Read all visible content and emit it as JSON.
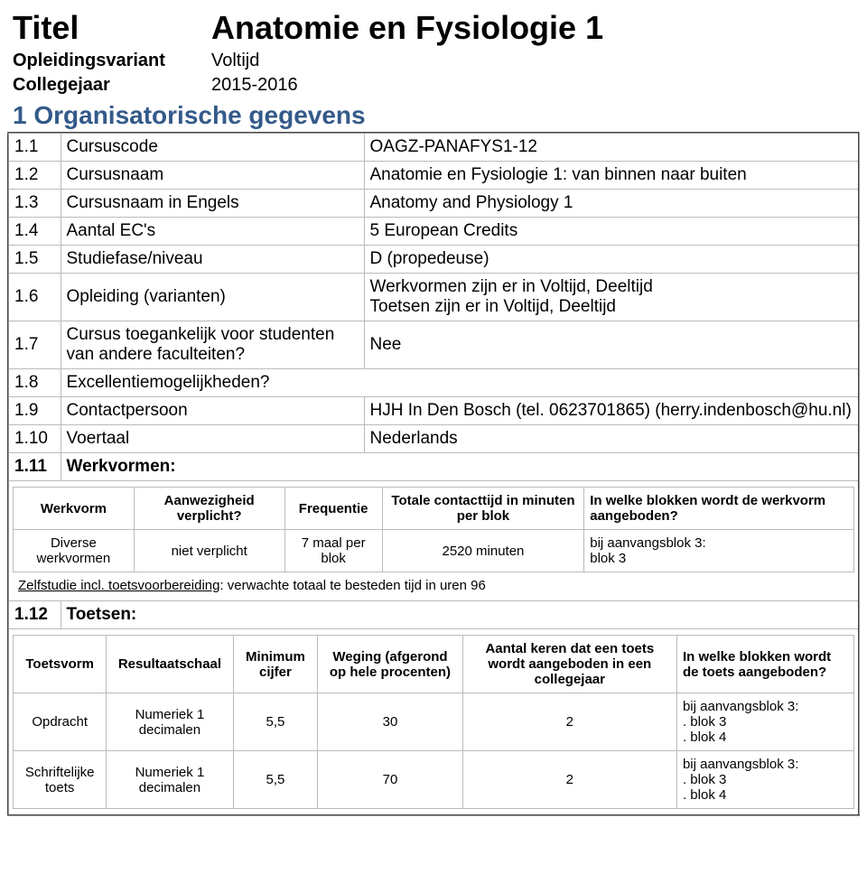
{
  "header": {
    "title_label": "Titel",
    "title_value": "Anatomie en Fysiologie 1",
    "variant_label": "Opleidingsvariant",
    "variant_value": "Voltijd",
    "year_label": "Collegejaar",
    "year_value": "2015-2016"
  },
  "section1": {
    "heading": "1 Organisatorische gegevens",
    "rows": [
      {
        "num": "1.1",
        "label": "Cursuscode",
        "value": "OAGZ-PANAFYS1-12"
      },
      {
        "num": "1.2",
        "label": "Cursusnaam",
        "value": "Anatomie en Fysiologie 1: van binnen naar buiten"
      },
      {
        "num": "1.3",
        "label": "Cursusnaam in Engels",
        "value": "Anatomy and Physiology 1"
      },
      {
        "num": "1.4",
        "label": "Aantal EC's",
        "value": "5 European Credits"
      },
      {
        "num": "1.5",
        "label": "Studiefase/niveau",
        "value": "D (propedeuse)"
      },
      {
        "num": "1.6",
        "label": "Opleiding (varianten)",
        "value": "Werkvormen zijn er in Voltijd, Deeltijd\nToetsen zijn er in Voltijd, Deeltijd"
      },
      {
        "num": "1.7",
        "label": "Cursus toegankelijk voor studenten van andere faculteiten?",
        "value": "Nee"
      },
      {
        "num": "1.8",
        "label": "Excellentiemogelijkheden?",
        "value": ""
      },
      {
        "num": "1.9",
        "label": "Contactpersoon",
        "value": "HJH In Den Bosch (tel. 0623701865) (herry.indenbosch@hu.nl)"
      },
      {
        "num": "1.10",
        "label": "Voertaal",
        "value": "Nederlands"
      }
    ],
    "werkvormen": {
      "num": "1.11",
      "label": "Werkvormen:",
      "columns": [
        "Werkvorm",
        "Aanwezigheid verplicht?",
        "Frequentie",
        "Totale contacttijd in minuten per blok",
        "In welke blokken wordt de werkvorm aangeboden?"
      ],
      "rows": [
        [
          "Diverse werkvormen",
          "niet verplicht",
          "7 maal per blok",
          "2520 minuten",
          "bij aanvangsblok 3:\nblok 3"
        ]
      ],
      "note_prefix": "Zelfstudie incl. toetsvoorbereiding",
      "note_rest": ": verwachte totaal te besteden tijd in uren 96"
    },
    "toetsen": {
      "num": "1.12",
      "label": "Toetsen:",
      "columns": [
        "Toetsvorm",
        "Resultaatschaal",
        "Minimum cijfer",
        "Weging (afgerond op hele procenten)",
        "Aantal keren dat een toets wordt aangeboden in een collegejaar",
        "In welke blokken wordt de toets aangeboden?"
      ],
      "rows": [
        [
          "Opdracht",
          "Numeriek 1 decimalen",
          "5,5",
          "30",
          "2",
          "bij aanvangsblok 3:\n. blok 3\n. blok 4"
        ],
        [
          "Schriftelijke toets",
          "Numeriek 1 decimalen",
          "5,5",
          "70",
          "2",
          "bij aanvangsblok 3:\n. blok 3\n. blok 4"
        ]
      ]
    }
  }
}
